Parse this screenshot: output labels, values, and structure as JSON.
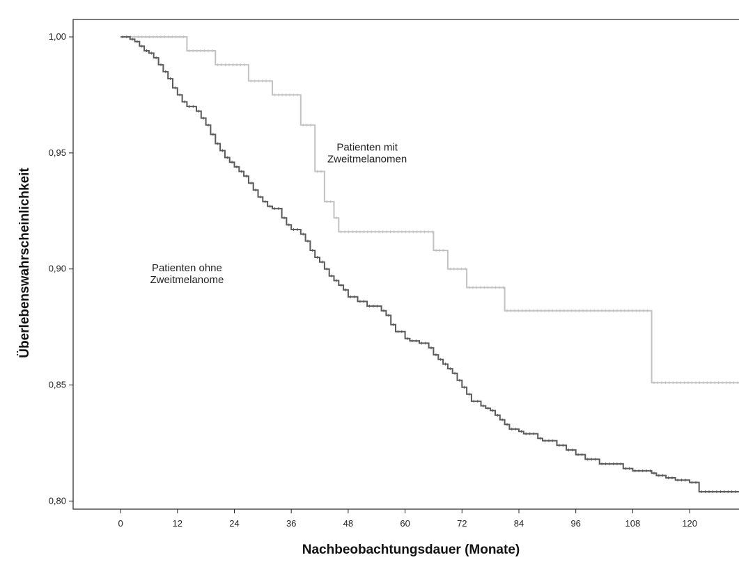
{
  "chart_data": {
    "type": "line",
    "xlabel": "Nachbeobachtungsdauer (Monate)",
    "ylabel": "Überlebenswahrscheinlichkeit",
    "xlim": [
      -10,
      131
    ],
    "ylim": [
      0.7965,
      1.0075
    ],
    "x_ticks": [
      0,
      12,
      24,
      36,
      48,
      60,
      72,
      84,
      96,
      108,
      120
    ],
    "x_tick_labels": [
      "0",
      "12",
      "24",
      "36",
      "48",
      "60",
      "72",
      "84",
      "96",
      "108",
      "120"
    ],
    "y_ticks": [
      0.8,
      0.85,
      0.9,
      0.95,
      1.0
    ],
    "y_tick_labels": [
      "0,80",
      "0,85",
      "0,90",
      "0,95",
      "1,00"
    ],
    "step": true,
    "censor_marks": true,
    "grid": false,
    "legend": "none",
    "series": [
      {
        "color": "#c2c2c2",
        "x": [
          0,
          14,
          20,
          27,
          32,
          38,
          41,
          43,
          45,
          46,
          66,
          69,
          73,
          81,
          112,
          131
        ],
        "y": [
          1.0,
          0.994,
          0.988,
          0.981,
          0.975,
          0.962,
          0.942,
          0.929,
          0.922,
          0.916,
          0.908,
          0.9,
          0.892,
          0.882,
          0.851,
          0.851
        ]
      },
      {
        "color": "#5a5a5a",
        "x": [
          0,
          2,
          3,
          4,
          5,
          6,
          7,
          8,
          9,
          10,
          11,
          12,
          13,
          14,
          16,
          17,
          18,
          19,
          20,
          21,
          22,
          23,
          24,
          25,
          26,
          27,
          28,
          29,
          30,
          31,
          32,
          34,
          35,
          36,
          38,
          39,
          40,
          41,
          42,
          43,
          44,
          45,
          46,
          47,
          48,
          50,
          52,
          55,
          56,
          57,
          58,
          60,
          61,
          63,
          65,
          66,
          67,
          68,
          69,
          70,
          71,
          72,
          73,
          74,
          76,
          77,
          78,
          79,
          80,
          81,
          82,
          84,
          85,
          88,
          89,
          92,
          94,
          96,
          98,
          101,
          106,
          108,
          112,
          113,
          115,
          117,
          120,
          122,
          131
        ],
        "y": [
          1.0,
          0.999,
          0.998,
          0.996,
          0.994,
          0.993,
          0.991,
          0.988,
          0.985,
          0.982,
          0.978,
          0.975,
          0.972,
          0.97,
          0.968,
          0.965,
          0.962,
          0.958,
          0.954,
          0.951,
          0.948,
          0.946,
          0.944,
          0.942,
          0.94,
          0.937,
          0.934,
          0.931,
          0.929,
          0.927,
          0.926,
          0.922,
          0.919,
          0.917,
          0.915,
          0.912,
          0.908,
          0.905,
          0.903,
          0.9,
          0.897,
          0.895,
          0.893,
          0.891,
          0.888,
          0.886,
          0.884,
          0.882,
          0.88,
          0.876,
          0.873,
          0.87,
          0.869,
          0.868,
          0.866,
          0.863,
          0.861,
          0.859,
          0.857,
          0.855,
          0.852,
          0.849,
          0.846,
          0.843,
          0.841,
          0.84,
          0.839,
          0.837,
          0.835,
          0.833,
          0.831,
          0.83,
          0.829,
          0.827,
          0.826,
          0.824,
          0.822,
          0.82,
          0.818,
          0.816,
          0.814,
          0.813,
          0.812,
          0.811,
          0.81,
          0.809,
          0.808,
          0.804,
          0.804
        ]
      }
    ],
    "annotations": [
      {
        "lines": [
          "Patienten mit",
          "Zweitmelanomen"
        ],
        "x": 52,
        "y": 0.951
      },
      {
        "lines": [
          "Patienten ohne",
          "Zweitmelanome"
        ],
        "x": 14,
        "y": 0.899
      }
    ]
  }
}
